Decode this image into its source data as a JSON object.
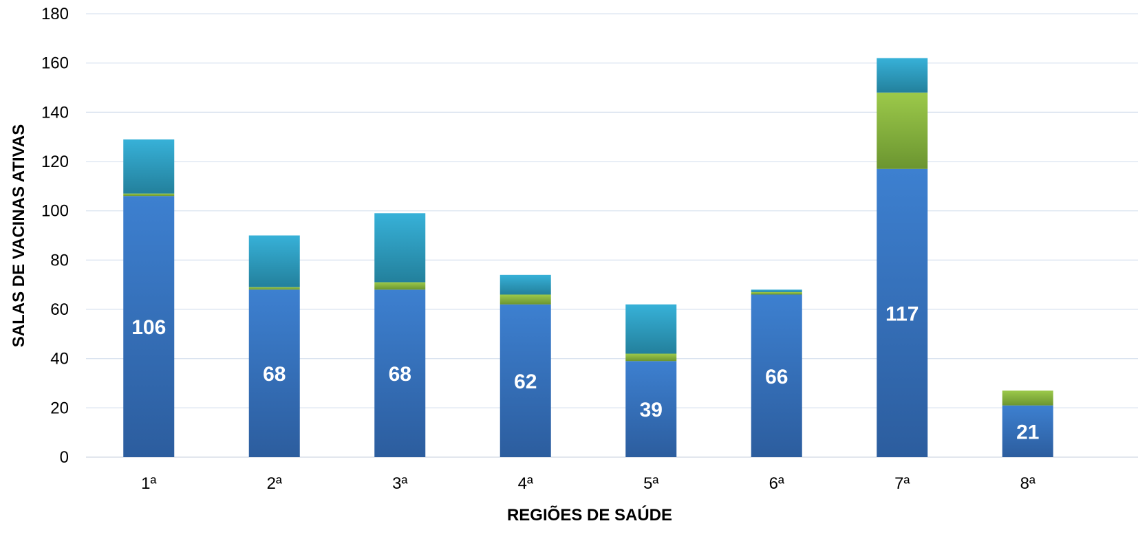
{
  "chart_data": {
    "type": "bar",
    "stacked": true,
    "title": "",
    "xlabel": "REGIÕES DE SAÚDE",
    "ylabel": "SALAS DE VACINAS ATIVAS",
    "ylim": [
      0,
      180
    ],
    "yticks": [
      0,
      20,
      40,
      60,
      80,
      100,
      120,
      140,
      160,
      180
    ],
    "grid": true,
    "legend": "none",
    "categories": [
      "1ª",
      "2ª",
      "3ª",
      "4ª",
      "5ª",
      "6ª",
      "7ª",
      "8ª"
    ],
    "series": [
      {
        "values": [
          106,
          68,
          68,
          62,
          39,
          66,
          117,
          21
        ],
        "color": "#3a7cc9",
        "show_labels": true
      },
      {
        "values": [
          1,
          1,
          3,
          4,
          3,
          1,
          31,
          6
        ],
        "color": "#8bb83c",
        "show_labels": false
      },
      {
        "values": [
          22,
          21,
          28,
          8,
          20,
          1,
          14,
          0
        ],
        "color": "#2fa6c8",
        "show_labels": false
      }
    ]
  }
}
